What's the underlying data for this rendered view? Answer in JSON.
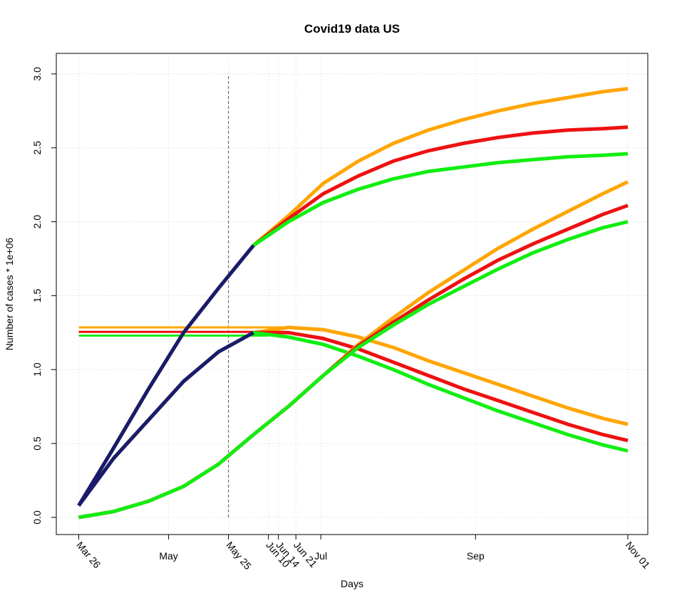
{
  "chart_data": {
    "type": "line",
    "title": "Covid19 data US",
    "xlabel": "Days",
    "ylabel": "Number of cases * 1e+06",
    "x": [
      "Mar 26",
      "Apr 09",
      "Apr 23",
      "May 07",
      "May 21",
      "Jun 04",
      "Jun 18",
      "Jul 02",
      "Jul 16",
      "Jul 30",
      "Aug 13",
      "Aug 27",
      "Sep 10",
      "Sep 24",
      "Oct 08",
      "Oct 22",
      "Nov 01"
    ],
    "series": [
      {
        "color": "#ffa500",
        "values": [
          0.08,
          0.47,
          0.87,
          1.25,
          1.55,
          1.84,
          2.04,
          2.26,
          2.41,
          2.53,
          2.62,
          2.69,
          2.75,
          2.8,
          2.84,
          2.88,
          2.9
        ]
      },
      {
        "color": "#ee1111",
        "values": [
          0.08,
          0.47,
          0.87,
          1.25,
          1.55,
          1.84,
          2.02,
          2.19,
          2.31,
          2.41,
          2.48,
          2.53,
          2.57,
          2.6,
          2.62,
          2.63,
          2.64
        ]
      },
      {
        "color": "#11ee11",
        "values": [
          0.08,
          0.47,
          0.87,
          1.25,
          1.55,
          1.84,
          2.0,
          2.13,
          2.22,
          2.29,
          2.34,
          2.37,
          2.4,
          2.42,
          2.44,
          2.45,
          2.46
        ]
      },
      {
        "color": "#ffa500",
        "values": [
          0.08,
          0.4,
          0.66,
          0.92,
          1.12,
          1.25,
          1.285,
          1.27,
          1.22,
          1.15,
          1.06,
          0.98,
          0.9,
          0.82,
          0.74,
          0.67,
          0.63
        ]
      },
      {
        "color": "#ee1111",
        "values": [
          0.08,
          0.4,
          0.66,
          0.92,
          1.12,
          1.25,
          1.25,
          1.21,
          1.14,
          1.05,
          0.96,
          0.87,
          0.79,
          0.71,
          0.63,
          0.56,
          0.52
        ]
      },
      {
        "color": "#11ee11",
        "values": [
          0.08,
          0.4,
          0.66,
          0.92,
          1.12,
          1.25,
          1.22,
          1.17,
          1.09,
          1.0,
          0.9,
          0.81,
          0.72,
          0.64,
          0.56,
          0.49,
          0.45
        ]
      },
      {
        "color": "#ffa500",
        "values": [
          0.0,
          0.04,
          0.11,
          0.21,
          0.36,
          0.56,
          0.75,
          0.96,
          1.17,
          1.35,
          1.52,
          1.67,
          1.82,
          1.95,
          2.07,
          2.19,
          2.27
        ]
      },
      {
        "color": "#ee1111",
        "values": [
          0.0,
          0.04,
          0.11,
          0.21,
          0.36,
          0.56,
          0.75,
          0.96,
          1.16,
          1.32,
          1.47,
          1.61,
          1.74,
          1.85,
          1.95,
          2.05,
          2.11
        ]
      },
      {
        "color": "#11ee11",
        "values": [
          0.0,
          0.04,
          0.11,
          0.21,
          0.36,
          0.56,
          0.75,
          0.96,
          1.15,
          1.3,
          1.44,
          1.56,
          1.68,
          1.79,
          1.88,
          1.96,
          2.0
        ]
      },
      {
        "color": "#1a1a6e",
        "values": [
          0.08,
          0.47,
          0.87,
          1.25,
          1.55,
          1.84,
          null,
          null,
          null,
          null,
          null,
          null,
          null,
          null,
          null,
          null,
          null
        ]
      },
      {
        "color": "#1a1a6e",
        "values": [
          0.08,
          0.4,
          0.66,
          0.92,
          1.12,
          1.25,
          null,
          null,
          null,
          null,
          null,
          null,
          null,
          null,
          null,
          null,
          null
        ]
      }
    ],
    "hlines": [
      {
        "value": 1.285,
        "from": "Mar 26",
        "to": "Jun 21",
        "color": "#ffa500"
      },
      {
        "value": 1.255,
        "from": "Mar 26",
        "to": "Jun 14",
        "color": "#ee1111"
      },
      {
        "value": 1.23,
        "from": "Mar 26",
        "to": "Jun 10",
        "color": "#11ee11"
      }
    ],
    "vline": {
      "x": "May 25",
      "from": 0,
      "to": 3.0,
      "color": "#555555"
    },
    "xlim": [
      "Mar 17",
      "Nov 09"
    ],
    "ylim": [
      -0.116,
      3.139
    ],
    "xticks": [
      {
        "value": "Mar 26",
        "label": "Mar 26",
        "rotated": true
      },
      {
        "value": "May 01",
        "label": "May",
        "rotated": false
      },
      {
        "value": "May 25",
        "label": "May 25",
        "rotated": true
      },
      {
        "value": "Jun 10",
        "label": "Jun 10",
        "rotated": true
      },
      {
        "value": "Jun 14",
        "label": "Jun 14",
        "rotated": true
      },
      {
        "value": "Jun 21",
        "label": "Jun 21",
        "rotated": true
      },
      {
        "value": "Jul 01",
        "label": "Jul",
        "rotated": false
      },
      {
        "value": "Sep 01",
        "label": "Sep",
        "rotated": false
      },
      {
        "value": "Nov 01",
        "label": "Nov 01",
        "rotated": true
      }
    ],
    "yticks": [
      {
        "value": 0,
        "label": "0.0"
      },
      0.5,
      {
        "value": 1,
        "label": "1.0"
      },
      1.5,
      {
        "value": 2,
        "label": "2.0"
      },
      2.5,
      {
        "value": 3,
        "label": "3.0"
      }
    ],
    "grid": true
  }
}
